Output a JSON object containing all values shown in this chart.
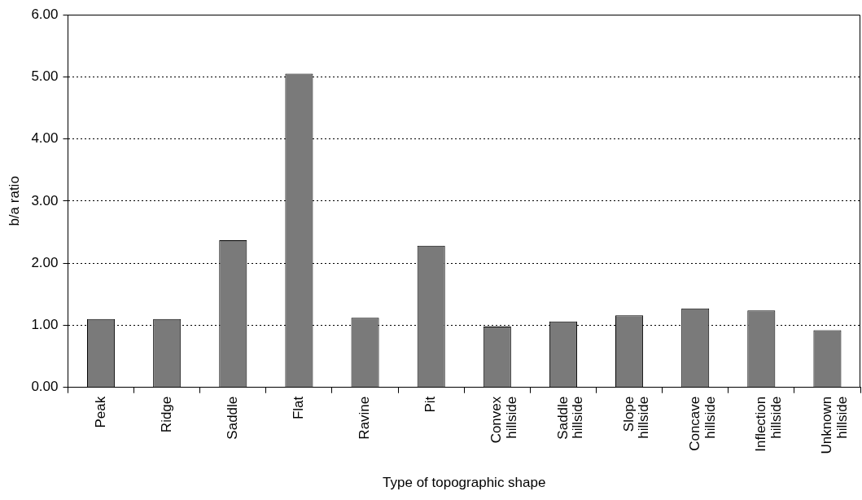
{
  "chart_data": {
    "type": "bar",
    "xlabel": "Type of topographic shape",
    "ylabel": "b/a ratio",
    "categories": [
      "Peak",
      "Ridge",
      "Saddle",
      "Flat",
      "Ravine",
      "Pit",
      "Convex hillside",
      "Saddle hillside",
      "Slope hillside",
      "Concave hillside",
      "Inflection hillside",
      "Unknown hillside"
    ],
    "values": [
      1.1,
      1.1,
      2.37,
      5.05,
      1.12,
      2.28,
      0.98,
      1.06,
      1.16,
      1.27,
      1.24,
      0.92
    ],
    "color": "#7a7a7a",
    "ylim": [
      0,
      6
    ],
    "yticks": [
      {
        "value": 0,
        "label": "0.00"
      },
      {
        "value": 1,
        "label": "1.00"
      },
      {
        "value": 2,
        "label": "2.00"
      },
      {
        "value": 3,
        "label": "3.00"
      },
      {
        "value": 4,
        "label": "4.00"
      },
      {
        "value": 5,
        "label": "5.00"
      },
      {
        "value": 6,
        "label": "6.00"
      }
    ],
    "grid": "y",
    "legend": false
  }
}
